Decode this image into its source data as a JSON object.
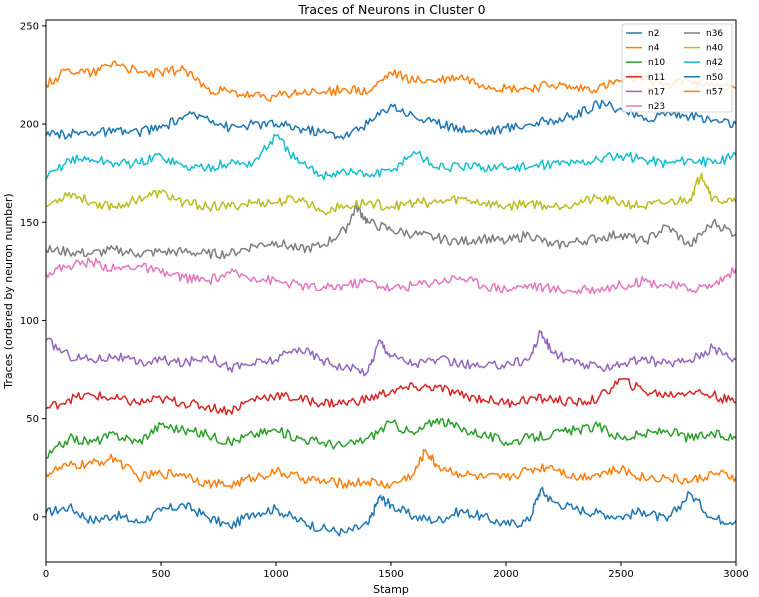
{
  "chart_data": {
    "type": "line",
    "title": "Traces of Neurons in Cluster 0",
    "xlabel": "Stamp",
    "ylabel": "Traces (ordered by neuron number)",
    "xlim": [
      0,
      3000
    ],
    "ylim": [
      -23,
      253
    ],
    "xticks": [
      0,
      500,
      1000,
      1500,
      2000,
      2500,
      3000
    ],
    "yticks": [
      0,
      50,
      100,
      150,
      200,
      250
    ],
    "grid": false,
    "legend_position": "top-right",
    "series": [
      {
        "name": "n2",
        "color": "#1f77b4",
        "x": [
          0,
          100,
          200,
          300,
          400,
          500,
          600,
          700,
          800,
          900,
          1000,
          1100,
          1200,
          1300,
          1400,
          1450,
          1500,
          1600,
          1700,
          1800,
          1900,
          2000,
          2100,
          2150,
          2200,
          2300,
          2400,
          2500,
          2600,
          2700,
          2800,
          2900,
          3000
        ],
        "values": [
          2,
          5,
          -2,
          1,
          -3,
          3,
          6,
          0,
          -5,
          2,
          4,
          -2,
          -6,
          -8,
          -4,
          10,
          6,
          0,
          -2,
          3,
          0,
          -4,
          -2,
          14,
          8,
          4,
          2,
          0,
          3,
          -2,
          12,
          -1,
          -2
        ]
      },
      {
        "name": "n4",
        "color": "#ff7f0e",
        "x": [
          0,
          100,
          200,
          300,
          400,
          500,
          600,
          700,
          800,
          900,
          1000,
          1100,
          1200,
          1300,
          1400,
          1500,
          1600,
          1650,
          1700,
          1800,
          1900,
          2000,
          2100,
          2200,
          2300,
          2400,
          2500,
          2600,
          2700,
          2800,
          2900,
          3000
        ],
        "values": [
          22,
          26,
          27,
          30,
          20,
          22,
          22,
          17,
          16,
          20,
          23,
          20,
          18,
          17,
          18,
          16,
          22,
          34,
          26,
          22,
          20,
          20,
          24,
          26,
          20,
          22,
          24,
          20,
          20,
          18,
          22,
          20
        ]
      },
      {
        "name": "n10",
        "color": "#2ca02c",
        "x": [
          0,
          100,
          200,
          300,
          400,
          500,
          600,
          700,
          800,
          900,
          1000,
          1100,
          1200,
          1300,
          1400,
          1500,
          1600,
          1700,
          1800,
          1900,
          2000,
          2100,
          2200,
          2300,
          2400,
          2500,
          2600,
          2700,
          2800,
          2900,
          3000
        ],
        "values": [
          30,
          40,
          38,
          42,
          38,
          47,
          44,
          42,
          38,
          42,
          44,
          40,
          38,
          36,
          40,
          48,
          42,
          50,
          45,
          42,
          38,
          40,
          42,
          44,
          46,
          40,
          42,
          44,
          40,
          42,
          40
        ]
      },
      {
        "name": "n11",
        "color": "#d62728",
        "x": [
          0,
          100,
          200,
          300,
          400,
          500,
          600,
          700,
          800,
          900,
          1000,
          1100,
          1200,
          1300,
          1400,
          1500,
          1600,
          1700,
          1800,
          1900,
          2000,
          2100,
          2200,
          2300,
          2400,
          2500,
          2600,
          2700,
          2800,
          2900,
          3000
        ],
        "values": [
          55,
          60,
          62,
          60,
          58,
          60,
          58,
          56,
          54,
          60,
          62,
          60,
          58,
          58,
          60,
          64,
          66,
          66,
          62,
          60,
          58,
          60,
          60,
          58,
          60,
          70,
          64,
          62,
          64,
          62,
          58
        ]
      },
      {
        "name": "n17",
        "color": "#9467bd",
        "x": [
          0,
          100,
          200,
          300,
          400,
          500,
          600,
          700,
          800,
          900,
          1000,
          1100,
          1200,
          1300,
          1400,
          1450,
          1500,
          1600,
          1700,
          1800,
          1900,
          2000,
          2100,
          2150,
          2200,
          2300,
          2400,
          2500,
          2600,
          2700,
          2800,
          2900,
          3000
        ],
        "values": [
          90,
          82,
          80,
          82,
          78,
          80,
          78,
          82,
          76,
          78,
          80,
          86,
          80,
          76,
          74,
          90,
          82,
          78,
          80,
          78,
          76,
          78,
          80,
          94,
          84,
          78,
          76,
          78,
          80,
          78,
          80,
          86,
          80
        ]
      },
      {
        "name": "n23",
        "color": "#e377c2",
        "x": [
          0,
          100,
          200,
          300,
          400,
          500,
          600,
          700,
          800,
          900,
          1000,
          1100,
          1200,
          1300,
          1400,
          1500,
          1600,
          1700,
          1800,
          1900,
          2000,
          2100,
          2200,
          2300,
          2400,
          2500,
          2600,
          2700,
          2800,
          2900,
          3000
        ],
        "values": [
          124,
          128,
          130,
          126,
          128,
          124,
          122,
          120,
          124,
          122,
          120,
          118,
          116,
          118,
          120,
          116,
          118,
          120,
          122,
          118,
          116,
          118,
          116,
          115,
          116,
          118,
          120,
          118,
          116,
          118,
          126
        ]
      },
      {
        "name": "n36",
        "color": "#7f7f7f",
        "x": [
          0,
          100,
          200,
          300,
          400,
          500,
          600,
          700,
          800,
          900,
          1000,
          1100,
          1200,
          1300,
          1350,
          1400,
          1500,
          1600,
          1700,
          1800,
          1900,
          2000,
          2100,
          2200,
          2300,
          2400,
          2500,
          2600,
          2700,
          2800,
          2900,
          3000
        ],
        "values": [
          136,
          135,
          134,
          136,
          134,
          135,
          135,
          134,
          134,
          138,
          140,
          136,
          138,
          146,
          158,
          150,
          146,
          144,
          142,
          140,
          142,
          140,
          144,
          138,
          140,
          142,
          144,
          140,
          148,
          138,
          150,
          144
        ]
      },
      {
        "name": "n40",
        "color": "#bcbd22",
        "x": [
          0,
          100,
          200,
          300,
          400,
          500,
          600,
          700,
          800,
          900,
          1000,
          1100,
          1200,
          1300,
          1400,
          1500,
          1600,
          1700,
          1800,
          1900,
          2000,
          2100,
          2200,
          2300,
          2400,
          2500,
          2600,
          2700,
          2800,
          2850,
          2900,
          3000
        ],
        "values": [
          158,
          165,
          160,
          158,
          162,
          165,
          160,
          158,
          158,
          160,
          160,
          162,
          156,
          158,
          160,
          158,
          160,
          160,
          162,
          160,
          158,
          160,
          158,
          160,
          162,
          160,
          158,
          160,
          162,
          175,
          162,
          160
        ]
      },
      {
        "name": "n42",
        "color": "#17becf",
        "x": [
          0,
          100,
          200,
          300,
          400,
          500,
          600,
          700,
          800,
          900,
          1000,
          1100,
          1200,
          1300,
          1400,
          1500,
          1600,
          1700,
          1800,
          1900,
          2000,
          2100,
          2200,
          2300,
          2400,
          2500,
          2600,
          2700,
          2800,
          2900,
          3000
        ],
        "values": [
          172,
          182,
          182,
          180,
          180,
          184,
          178,
          178,
          180,
          180,
          194,
          180,
          174,
          176,
          174,
          176,
          186,
          178,
          178,
          178,
          178,
          178,
          180,
          180,
          182,
          184,
          182,
          180,
          182,
          180,
          184
        ]
      },
      {
        "name": "n50",
        "color": "#1f77b4",
        "x": [
          0,
          100,
          200,
          300,
          400,
          500,
          600,
          700,
          800,
          900,
          1000,
          1100,
          1200,
          1300,
          1400,
          1500,
          1600,
          1700,
          1800,
          1900,
          2000,
          2100,
          2200,
          2300,
          2400,
          2500,
          2600,
          2700,
          2800,
          2900,
          3000
        ],
        "values": [
          194,
          195,
          196,
          196,
          196,
          198,
          204,
          204,
          198,
          200,
          200,
          198,
          196,
          194,
          200,
          210,
          204,
          200,
          198,
          196,
          198,
          200,
          202,
          204,
          210,
          208,
          202,
          206,
          204,
          202,
          200
        ]
      },
      {
        "name": "n57",
        "color": "#ff7f0e",
        "x": [
          0,
          100,
          200,
          300,
          400,
          500,
          600,
          700,
          800,
          900,
          1000,
          1100,
          1200,
          1300,
          1400,
          1500,
          1600,
          1700,
          1800,
          1900,
          2000,
          2100,
          2200,
          2300,
          2400,
          2500,
          2600,
          2700,
          2800,
          2900,
          3000
        ],
        "values": [
          220,
          228,
          226,
          232,
          226,
          226,
          228,
          218,
          216,
          214,
          214,
          216,
          216,
          218,
          216,
          226,
          222,
          222,
          224,
          220,
          218,
          218,
          220,
          218,
          218,
          222,
          224,
          220,
          222,
          220,
          218
        ]
      }
    ]
  }
}
